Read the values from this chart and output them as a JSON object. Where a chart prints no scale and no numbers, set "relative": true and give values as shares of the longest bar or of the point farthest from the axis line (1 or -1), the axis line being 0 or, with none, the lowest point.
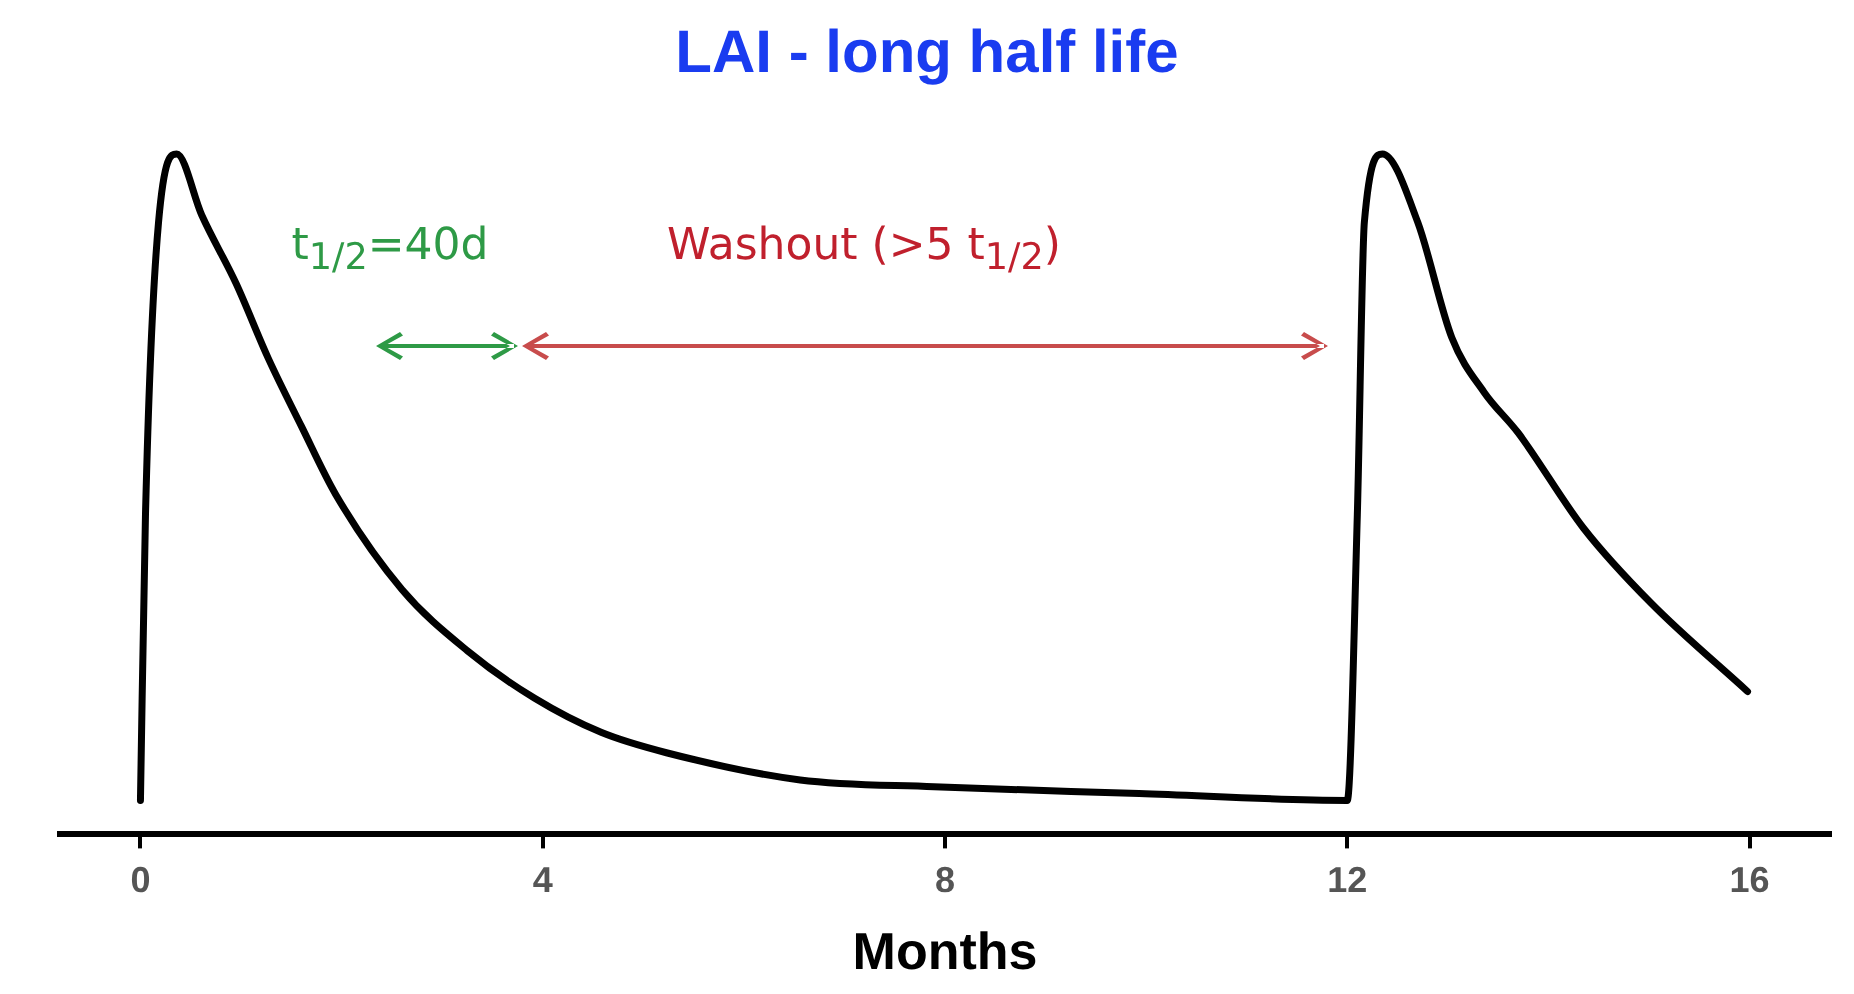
{
  "chart_data": {
    "type": "line",
    "title": "LAI - long half life",
    "xlabel": "Months",
    "relative": true,
    "xlim": [
      -0.8,
      16.8
    ],
    "xticks": [
      0,
      4,
      8,
      12,
      16
    ],
    "marker": "none",
    "line_style": "solid",
    "series": [
      {
        "color": "#000000",
        "x": [
          0,
          0.05,
          0.18,
          0.36,
          0.61,
          0.95,
          1.27,
          1.6,
          1.94,
          2.6,
          3.25,
          3.92,
          4.58,
          5.23,
          6.56,
          7.89,
          9.93,
          12.0,
          12.1,
          12.17,
          12.35,
          12.7,
          13.04,
          13.36,
          13.7,
          14.35,
          15.02,
          15.98
        ],
        "values": [
          0.05,
          0.47,
          0.9,
          1.0,
          0.91,
          0.81,
          0.7,
          0.6,
          0.5,
          0.36,
          0.27,
          0.2,
          0.15,
          0.12,
          0.08,
          0.07,
          0.06,
          0.05,
          0.47,
          0.9,
          1.0,
          0.9,
          0.73,
          0.65,
          0.59,
          0.45,
          0.34,
          0.21
        ]
      }
    ],
    "annotations": [
      "t$_{1/2}$=40d",
      "Washout (>5 t$_{1/2}$)"
    ]
  }
}
